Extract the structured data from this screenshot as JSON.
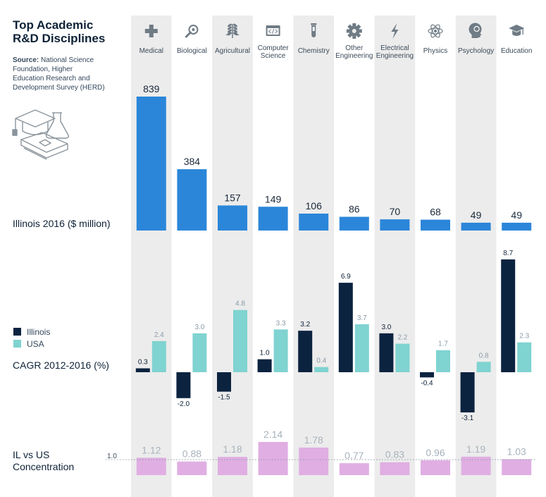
{
  "title_lines": [
    "Top Academic",
    "R&D Disciplines"
  ],
  "source": {
    "label": "Source:",
    "lines": [
      " National Science",
      "Foundation, Higher",
      "Education Research and",
      "Development Survey (HERD)"
    ]
  },
  "colors": {
    "illinois_total": "#2b86d9",
    "illinois_cagr": "#0c2340",
    "usa_cagr": "#7fd3d0",
    "concentration": "#e0aee3",
    "column_stripe": "#ececec"
  },
  "chart_data": {
    "type": "bar",
    "categories": [
      {
        "label": [
          "Medical"
        ],
        "icon": "medical-cross-icon"
      },
      {
        "label": [
          "Biological"
        ],
        "icon": "magnifier-icon"
      },
      {
        "label": [
          "Agricultural"
        ],
        "icon": "wheat-icon"
      },
      {
        "label": [
          "Computer",
          "Science"
        ],
        "icon": "code-window-icon"
      },
      {
        "label": [
          "Chemistry"
        ],
        "icon": "test-tube-icon"
      },
      {
        "label": [
          "Other",
          "Engineering"
        ],
        "icon": "gear-icon"
      },
      {
        "label": [
          "Electrical",
          "Engineering"
        ],
        "icon": "lightning-icon"
      },
      {
        "label": [
          "Physics"
        ],
        "icon": "atom-icon"
      },
      {
        "label": [
          "Psychology"
        ],
        "icon": "head-icon"
      },
      {
        "label": [
          "Education"
        ],
        "icon": "graduation-cap-icon"
      }
    ],
    "panels": [
      {
        "label": "Illinois 2016 ($ million)",
        "series": [
          {
            "name": "Illinois 2016",
            "values": [
              839,
              384,
              157,
              149,
              106,
              86,
              70,
              68,
              49,
              49
            ]
          }
        ]
      },
      {
        "label": "CAGR 2012-2016 (%)",
        "series": [
          {
            "name": "Illinois",
            "values": [
              0.3,
              -2.0,
              -1.5,
              1.0,
              3.2,
              6.9,
              3.0,
              -0.4,
              -3.1,
              8.7
            ]
          },
          {
            "name": "USA",
            "values": [
              2.4,
              3.0,
              4.8,
              3.3,
              0.4,
              3.7,
              2.2,
              1.7,
              0.8,
              2.3
            ]
          }
        ]
      },
      {
        "label_lines": [
          "IL vs US",
          "Concentration"
        ],
        "reference_line": "1.0",
        "series": [
          {
            "name": "IL vs US Concentration",
            "values": [
              1.12,
              0.88,
              1.18,
              2.14,
              1.78,
              0.77,
              0.83,
              0.96,
              1.19,
              1.03
            ],
            "labels": [
              "1.12",
              "0.88",
              "1.18",
              "2.14",
              "1.78",
              "0.77",
              "0.83",
              "0.96",
              "1.19",
              "1.03"
            ]
          }
        ]
      }
    ],
    "cagr_labels": {
      "Illinois": [
        "0.3",
        "-2.0",
        "-1.5",
        "1.0",
        "3.2",
        "6.9",
        "3.0",
        "-0.4",
        "-3.1",
        "8.7"
      ],
      "USA": [
        "2.4",
        "3.0",
        "4.8",
        "3.3",
        "0.4",
        "3.7",
        "2.2",
        "1.7",
        "0.8",
        "2.3"
      ]
    },
    "legend": [
      "Illinois",
      "USA"
    ]
  }
}
